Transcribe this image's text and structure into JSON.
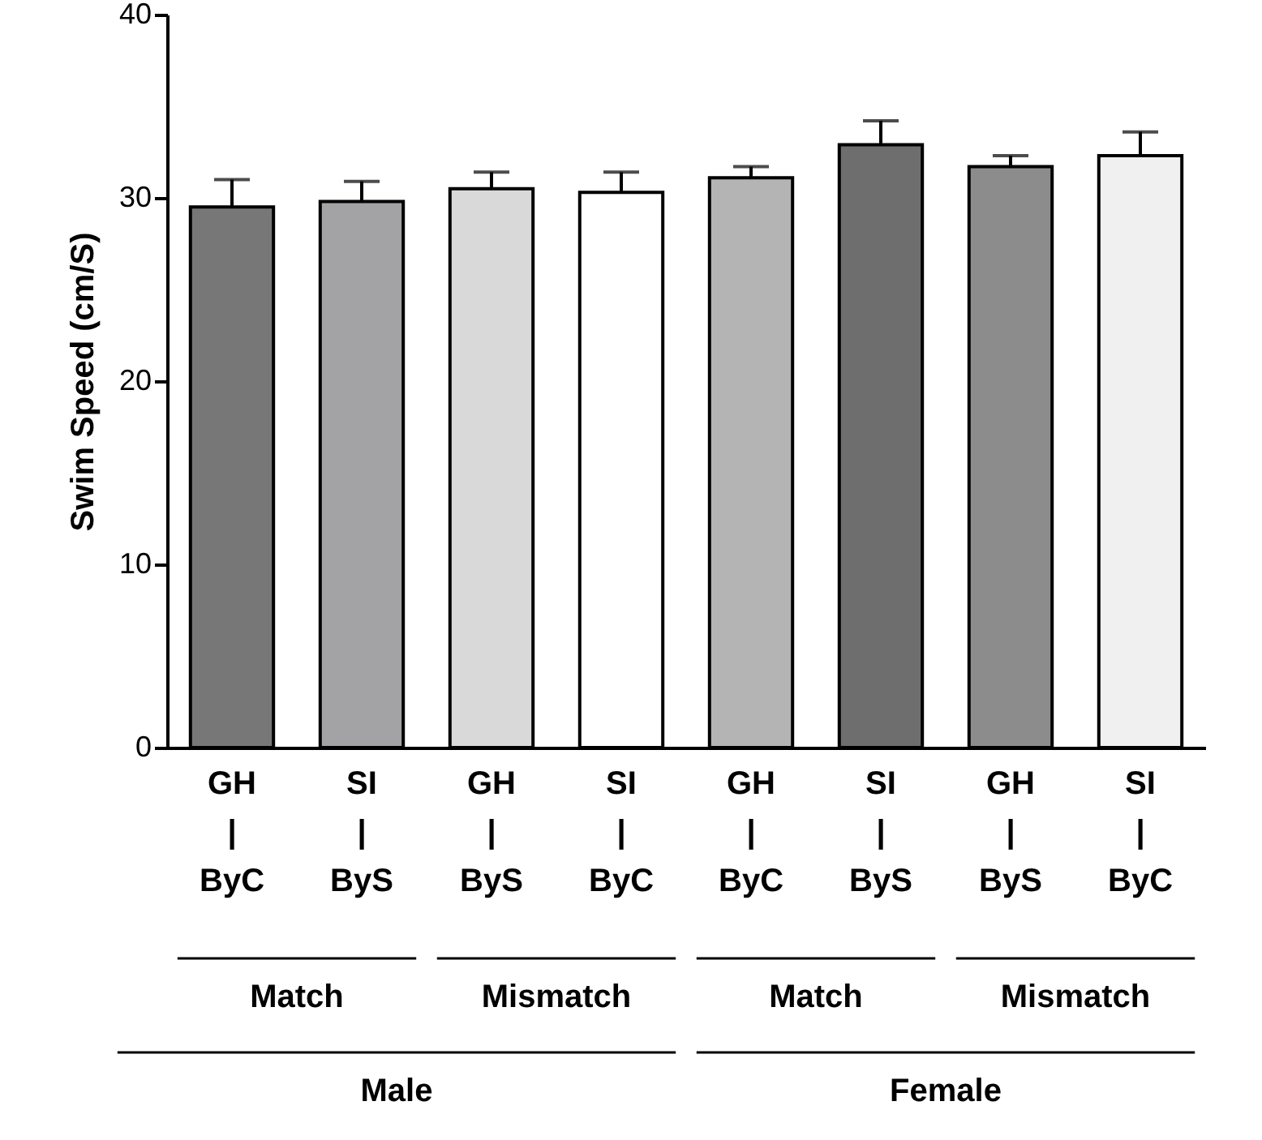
{
  "chart_data": {
    "type": "bar",
    "ylabel": "Swim Speed (cm/S)",
    "categories": [
      "GH\n|\nByC",
      "SI\n|\nByS",
      "GH\n|\nByS",
      "SI\n|\nByC",
      "GH\n|\nByC",
      "SI\n|\nByS",
      "GH\n|\nByS",
      "SI\n|\nByC"
    ],
    "values": [
      29.5,
      29.8,
      30.5,
      30.3,
      31.1,
      32.9,
      31.7,
      32.3
    ],
    "errors": [
      [
        29.5,
        31.0
      ],
      [
        29.8,
        30.9
      ],
      [
        30.5,
        31.4
      ],
      [
        30.3,
        31.4
      ],
      [
        31.1,
        31.7
      ],
      [
        32.9,
        34.2
      ],
      [
        31.7,
        32.3
      ],
      [
        32.3,
        33.6
      ]
    ],
    "colors": [
      "#777777",
      "#a3a3a6",
      "#d9d9d9",
      "#ffffff",
      "#b4b4b4",
      "#6e6e6e",
      "#8c8c8c",
      "#f0f0f0"
    ],
    "ylim": [
      0,
      40
    ],
    "yticks": [
      0,
      10,
      20,
      30,
      40
    ],
    "grid": false,
    "annotations": [
      "Match",
      "Mismatch",
      "Match",
      "Mismatch",
      "Male",
      "Female"
    ]
  }
}
